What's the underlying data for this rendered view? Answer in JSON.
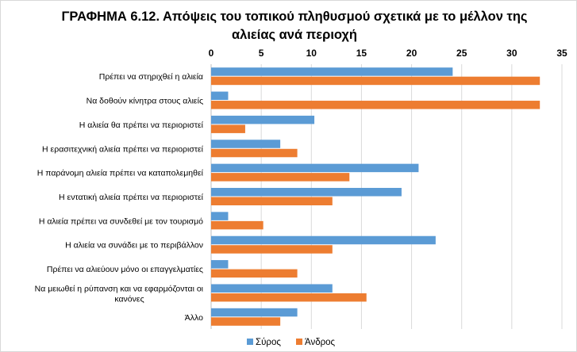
{
  "chart_data": {
    "type": "bar",
    "orientation": "horizontal",
    "title": "ΓΡΑΦΗΜΑ 6.12. Απόψεις του τοπικού πληθυσμού σχετικά με το μέλλον της αλιείας ανά περιοχή",
    "xlabel": "",
    "ylabel": "",
    "xlim": [
      0,
      35
    ],
    "xticks": [
      "0",
      "5",
      "10",
      "15",
      "20",
      "25",
      "30",
      "35"
    ],
    "x_axis_position": "top",
    "grid": true,
    "legend_position": "bottom",
    "categories": [
      "Πρέπει να στηριχθεί η αλιεία",
      "Να δοθούν κίνητρα στους αλιείς",
      "Η αλιεία θα πρέπει να περιοριστεί",
      "Η ερασιτεχνική αλιεία πρέπει να περιοριστεί",
      "Η παράνομη αλιεία πρέπει να καταπολεμηθεί",
      "Η εντατική αλιεία πρέπει να περιοριστεί",
      "Η αλιεία πρέπει να συνδεθεί με τον τουρισμό",
      "Η αλιεία να συνάδει με το περιβάλλον",
      "Πρέπει να αλιεύουν μόνο οι επαγγελματίες",
      "Να μειωθεί η ρύπανση και να εφαρμόζονται οι κανόνες",
      "Άλλο"
    ],
    "series": [
      {
        "name": "Σύρος",
        "color": "#5b9bd5",
        "values": [
          24.1,
          1.7,
          10.3,
          6.9,
          20.7,
          19.0,
          1.7,
          22.4,
          1.7,
          12.1,
          8.6
        ]
      },
      {
        "name": "Άνδρος",
        "color": "#ed7d31",
        "values": [
          32.8,
          32.8,
          3.4,
          8.6,
          13.8,
          12.1,
          5.2,
          12.1,
          8.6,
          15.5,
          6.9
        ]
      }
    ]
  }
}
